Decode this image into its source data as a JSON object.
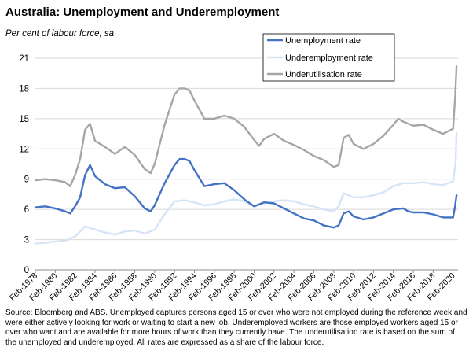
{
  "chart_data": {
    "type": "line",
    "title": "Australia: Unemployment and Underemployment",
    "subtitle": "Per cent of labour force, sa",
    "xlabel": "",
    "ylabel": "",
    "x_range": [
      1978.0,
      2020.5
    ],
    "ylim": [
      0,
      21
    ],
    "y_ticks": [
      "0",
      "3",
      "6",
      "9",
      "12",
      "15",
      "18",
      "21"
    ],
    "x_tick_labels": [
      "Feb-1978",
      "Feb-1980",
      "Feb-1982",
      "Feb-1984",
      "Feb-1986",
      "Feb-1988",
      "Feb-1990",
      "Feb-1992",
      "Feb-1994",
      "Feb-1996",
      "Feb-1998",
      "Feb-2000",
      "Feb-2002",
      "Feb-2004",
      "Feb-2006",
      "Feb-2008",
      "Feb-2010",
      "Feb-2012",
      "Feb-2014",
      "Feb-2016",
      "Feb-2018",
      "Feb-2020"
    ],
    "grid": "horizontal",
    "legend_position": "top-right",
    "series": [
      {
        "name": "Unemployment rate",
        "color": "#4472C4",
        "points": [
          [
            1978.0,
            6.2
          ],
          [
            1979.0,
            6.3
          ],
          [
            1980.0,
            6.1
          ],
          [
            1981.0,
            5.8
          ],
          [
            1981.5,
            5.6
          ],
          [
            1982.0,
            6.3
          ],
          [
            1982.5,
            7.2
          ],
          [
            1983.0,
            9.4
          ],
          [
            1983.5,
            10.4
          ],
          [
            1984.0,
            9.3
          ],
          [
            1985.0,
            8.5
          ],
          [
            1986.0,
            8.1
          ],
          [
            1987.0,
            8.2
          ],
          [
            1988.0,
            7.3
          ],
          [
            1989.0,
            6.1
          ],
          [
            1989.6,
            5.8
          ],
          [
            1990.0,
            6.4
          ],
          [
            1991.0,
            8.6
          ],
          [
            1992.0,
            10.4
          ],
          [
            1992.5,
            11.0
          ],
          [
            1993.0,
            11.0
          ],
          [
            1993.5,
            10.8
          ],
          [
            1994.0,
            9.9
          ],
          [
            1995.0,
            8.3
          ],
          [
            1996.0,
            8.5
          ],
          [
            1997.0,
            8.6
          ],
          [
            1998.0,
            7.9
          ],
          [
            1999.0,
            7.0
          ],
          [
            2000.0,
            6.3
          ],
          [
            2001.0,
            6.7
          ],
          [
            2002.0,
            6.6
          ],
          [
            2003.0,
            6.1
          ],
          [
            2004.0,
            5.6
          ],
          [
            2005.0,
            5.1
          ],
          [
            2006.0,
            4.9
          ],
          [
            2007.0,
            4.4
          ],
          [
            2008.0,
            4.2
          ],
          [
            2008.5,
            4.4
          ],
          [
            2009.0,
            5.6
          ],
          [
            2009.5,
            5.8
          ],
          [
            2010.0,
            5.3
          ],
          [
            2011.0,
            5.0
          ],
          [
            2012.0,
            5.2
          ],
          [
            2013.0,
            5.6
          ],
          [
            2014.0,
            6.0
          ],
          [
            2015.0,
            6.1
          ],
          [
            2015.5,
            5.8
          ],
          [
            2016.0,
            5.7
          ],
          [
            2017.0,
            5.7
          ],
          [
            2018.0,
            5.5
          ],
          [
            2019.0,
            5.2
          ],
          [
            2020.0,
            5.2
          ],
          [
            2020.2,
            6.3
          ],
          [
            2020.35,
            7.4
          ]
        ]
      },
      {
        "name": "Underemployment rate",
        "color": "#D6E4F7",
        "points": [
          [
            1978.0,
            2.6
          ],
          [
            1979.0,
            2.7
          ],
          [
            1980.0,
            2.8
          ],
          [
            1981.0,
            2.9
          ],
          [
            1982.0,
            3.3
          ],
          [
            1983.0,
            4.3
          ],
          [
            1984.0,
            4.0
          ],
          [
            1985.0,
            3.7
          ],
          [
            1986.0,
            3.5
          ],
          [
            1987.0,
            3.8
          ],
          [
            1988.0,
            3.9
          ],
          [
            1989.0,
            3.6
          ],
          [
            1990.0,
            4.0
          ],
          [
            1991.0,
            5.5
          ],
          [
            1992.0,
            6.8
          ],
          [
            1993.0,
            6.9
          ],
          [
            1994.0,
            6.7
          ],
          [
            1995.0,
            6.4
          ],
          [
            1996.0,
            6.5
          ],
          [
            1997.0,
            6.8
          ],
          [
            1998.0,
            7.0
          ],
          [
            1999.0,
            6.8
          ],
          [
            2000.0,
            6.3
          ],
          [
            2001.0,
            6.6
          ],
          [
            2002.0,
            6.8
          ],
          [
            2003.0,
            6.9
          ],
          [
            2004.0,
            6.8
          ],
          [
            2005.0,
            6.5
          ],
          [
            2006.0,
            6.3
          ],
          [
            2007.0,
            6.0
          ],
          [
            2008.0,
            5.8
          ],
          [
            2008.5,
            6.3
          ],
          [
            2009.0,
            7.6
          ],
          [
            2010.0,
            7.2
          ],
          [
            2011.0,
            7.2
          ],
          [
            2012.0,
            7.4
          ],
          [
            2013.0,
            7.7
          ],
          [
            2014.0,
            8.3
          ],
          [
            2015.0,
            8.6
          ],
          [
            2016.0,
            8.6
          ],
          [
            2017.0,
            8.7
          ],
          [
            2018.0,
            8.5
          ],
          [
            2019.0,
            8.4
          ],
          [
            2020.0,
            8.8
          ],
          [
            2020.25,
            10.5
          ],
          [
            2020.35,
            13.6
          ]
        ]
      },
      {
        "name": "Underutilisation rate",
        "color": "#A6A6A6",
        "points": [
          [
            1978.0,
            8.9
          ],
          [
            1979.0,
            9.0
          ],
          [
            1980.0,
            8.9
          ],
          [
            1981.0,
            8.7
          ],
          [
            1981.5,
            8.3
          ],
          [
            1982.0,
            9.4
          ],
          [
            1982.5,
            11.0
          ],
          [
            1983.0,
            13.9
          ],
          [
            1983.5,
            14.5
          ],
          [
            1984.0,
            12.8
          ],
          [
            1985.0,
            12.2
          ],
          [
            1986.0,
            11.5
          ],
          [
            1987.0,
            12.2
          ],
          [
            1988.0,
            11.4
          ],
          [
            1989.0,
            10.0
          ],
          [
            1989.6,
            9.6
          ],
          [
            1990.0,
            10.5
          ],
          [
            1991.0,
            14.4
          ],
          [
            1992.0,
            17.4
          ],
          [
            1992.5,
            18.0
          ],
          [
            1993.0,
            18.0
          ],
          [
            1993.5,
            17.8
          ],
          [
            1994.0,
            16.8
          ],
          [
            1995.0,
            15.0
          ],
          [
            1996.0,
            15.0
          ],
          [
            1997.0,
            15.3
          ],
          [
            1998.0,
            15.0
          ],
          [
            1999.0,
            14.2
          ],
          [
            2000.0,
            12.9
          ],
          [
            2000.5,
            12.3
          ],
          [
            2001.0,
            13.0
          ],
          [
            2002.0,
            13.5
          ],
          [
            2003.0,
            12.8
          ],
          [
            2004.0,
            12.4
          ],
          [
            2005.0,
            11.9
          ],
          [
            2006.0,
            11.3
          ],
          [
            2007.0,
            10.9
          ],
          [
            2008.0,
            10.2
          ],
          [
            2008.5,
            10.4
          ],
          [
            2009.0,
            13.1
          ],
          [
            2009.5,
            13.4
          ],
          [
            2010.0,
            12.5
          ],
          [
            2011.0,
            12.0
          ],
          [
            2012.0,
            12.5
          ],
          [
            2013.0,
            13.3
          ],
          [
            2014.0,
            14.4
          ],
          [
            2014.5,
            15.0
          ],
          [
            2015.0,
            14.7
          ],
          [
            2016.0,
            14.3
          ],
          [
            2017.0,
            14.4
          ],
          [
            2018.0,
            13.9
          ],
          [
            2019.0,
            13.5
          ],
          [
            2020.0,
            14.0
          ],
          [
            2020.2,
            17.0
          ],
          [
            2020.35,
            20.2
          ]
        ]
      }
    ]
  },
  "source_text": "Source: Bloomberg and ABS. Unemployed captures persons aged 15 or over who were not employed during the reference week and were either actively looking for work or waiting to start a new job. Underemployed workers are those employed workers aged 15 or over who want and are available for more hours of work than they currently have. The underutilisation rate is based on the sum of the unemployed and underemployed. All rates are expressed as a share of the labour force."
}
